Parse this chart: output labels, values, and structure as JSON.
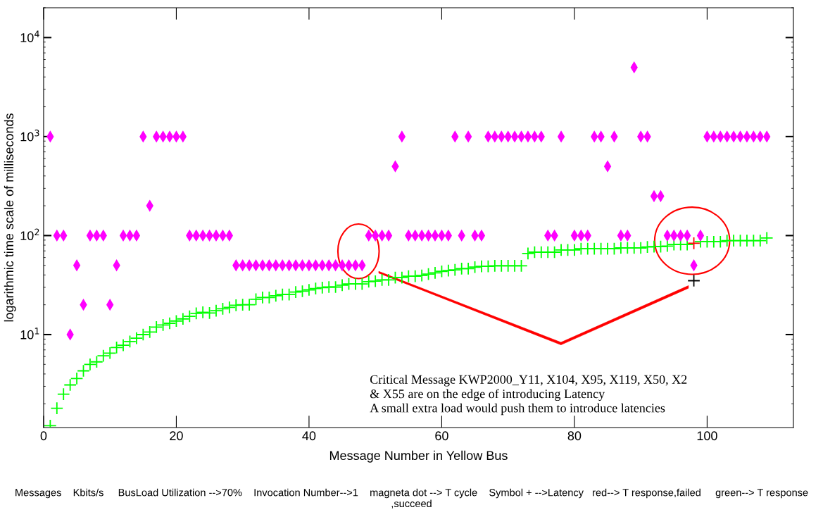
{
  "chart_data": {
    "type": "scatter",
    "xlabel": "Message Number in Yellow Bus",
    "ylabel": "logarithmic time scale of milliseconds",
    "log": "y",
    "grid": false,
    "xlim": [
      0,
      113
    ],
    "ylim": [
      1.15,
      20000
    ],
    "xticks": [
      0,
      20,
      40,
      60,
      80,
      100
    ],
    "yticks": [
      {
        "value": 10,
        "label": "10$^{1}$"
      },
      {
        "value": 100,
        "label": "10$^{2}$"
      },
      {
        "value": 1000,
        "label": "10$^{3}$"
      },
      {
        "value": 10000,
        "label": "10$^{4}$"
      }
    ],
    "series": [
      {
        "color": "#00ff00",
        "marker": "cross",
        "x": [
          1,
          2,
          3,
          4,
          5,
          6,
          7,
          8,
          9,
          10,
          11,
          12,
          13,
          14,
          15,
          16,
          17,
          18,
          19,
          20,
          21,
          22,
          23,
          24,
          25,
          26,
          27,
          28,
          29,
          30,
          31,
          32,
          33,
          34,
          35,
          36,
          37,
          38,
          39,
          40,
          41,
          42,
          43,
          44,
          45,
          46,
          47,
          48,
          49,
          50,
          51,
          52,
          53,
          54,
          55,
          56,
          57,
          58,
          59,
          60,
          61,
          62,
          63,
          64,
          65,
          66,
          67,
          68,
          69,
          70,
          71,
          72,
          73,
          74,
          75,
          76,
          77,
          78,
          79,
          80,
          81,
          82,
          83,
          84,
          85,
          86,
          87,
          88,
          89,
          90,
          91,
          92,
          93,
          94,
          95,
          96,
          97,
          99,
          100,
          101,
          102,
          103,
          104,
          105,
          106,
          107,
          108,
          109
        ],
        "values": [
          1.2,
          1.8,
          2.5,
          3.1,
          3.6,
          4.3,
          5.0,
          5.3,
          6.1,
          6.5,
          7.4,
          7.8,
          8.5,
          9.2,
          10,
          10.6,
          11.9,
          12.5,
          13,
          13.7,
          14.4,
          15.3,
          16.4,
          16.8,
          16.5,
          17.4,
          18.2,
          18.8,
          19.8,
          20,
          20,
          22.7,
          23.7,
          23.7,
          24.7,
          25.4,
          25.4,
          26.9,
          27.4,
          28.3,
          29.2,
          29.8,
          30.2,
          30.2,
          31.5,
          32.5,
          32.5,
          32.5,
          34.2,
          34.6,
          35.7,
          35.7,
          37.6,
          37.6,
          38.9,
          38.9,
          39.5,
          40.8,
          42,
          43.5,
          44.3,
          45,
          46.4,
          46.4,
          48,
          48.9,
          48.9,
          49.5,
          49.5,
          49.5,
          49.5,
          49.5,
          66,
          68,
          68,
          68,
          68,
          71.5,
          71.5,
          71.5,
          73.6,
          73.6,
          73.6,
          73.6,
          73.6,
          73.6,
          75,
          75,
          75,
          75,
          76.6,
          77.4,
          77.4,
          78.4,
          81.3,
          81.3,
          81.3,
          86.6,
          86.6,
          86.6,
          86.6,
          88.9,
          88.9,
          88.9,
          88.9,
          88.9,
          88.9,
          94.5
        ]
      },
      {
        "color": "#ff0000",
        "marker": "cross",
        "x": [
          98
        ],
        "values": [
          83.5
        ]
      },
      {
        "color": "#000000",
        "marker": "cross",
        "x": [
          98
        ],
        "values": [
          35
        ]
      },
      {
        "color": "#ff00ff",
        "marker": "diamond",
        "x": [
          1,
          2,
          3,
          4,
          5,
          6,
          7,
          8,
          9,
          10,
          11,
          12,
          13,
          14,
          15,
          16,
          17,
          18,
          19,
          20,
          21,
          22,
          23,
          24,
          25,
          26,
          27,
          28,
          29,
          30,
          31,
          32,
          33,
          34,
          35,
          36,
          37,
          38,
          39,
          40,
          41,
          42,
          43,
          44,
          45,
          46,
          47,
          48,
          49,
          50,
          51,
          52,
          53,
          54,
          55,
          56,
          57,
          58,
          59,
          60,
          61,
          62,
          63,
          64,
          65,
          66,
          67,
          68,
          69,
          70,
          71,
          72,
          73,
          74,
          75,
          76,
          77,
          78,
          80,
          81,
          82,
          83,
          84,
          85,
          86,
          87,
          88,
          89,
          90,
          91,
          92,
          93,
          94,
          95,
          96,
          97,
          98,
          99,
          100,
          101,
          102,
          103,
          104,
          105,
          106,
          107,
          108,
          109
        ],
        "values": [
          1000,
          100,
          100,
          10,
          50,
          20,
          100,
          100,
          100,
          20,
          50,
          100,
          100,
          100,
          1000,
          200,
          1000,
          1000,
          1000,
          1000,
          1000,
          100,
          100,
          100,
          100,
          100,
          100,
          100,
          50,
          50,
          50,
          50,
          50,
          50,
          50,
          50,
          50,
          50,
          50,
          50,
          50,
          50,
          50,
          50,
          50,
          50,
          50,
          50,
          100,
          100,
          100,
          100,
          500,
          1000,
          100,
          100,
          100,
          100,
          100,
          100,
          100,
          1000,
          100,
          1000,
          100,
          100,
          1000,
          1000,
          1000,
          1000,
          1000,
          1000,
          1000,
          1000,
          1000,
          100,
          100,
          1000,
          100,
          100,
          100,
          1000,
          1000,
          500,
          1000,
          100,
          100,
          5000,
          1000,
          1000,
          250,
          250,
          100,
          100,
          100,
          100,
          50,
          100,
          1000,
          1000,
          1000,
          1000,
          1000,
          1000,
          1000,
          1000,
          1000,
          1000
        ]
      }
    ],
    "annotations": [
      "Critical Message KWP2000_Y11, X104, X95, X119, X50, X2\n& X55 are on the edge of introducing Latency\nA small extra load would push them to introduce latencies",
      "Messages    Kbits/s     BusLoad Utilization -->70%    Invocation Number-->1    magneta dot --> T cycle    Symbol + -->Latency   red--> T response,failed     green--> T response ,succeed"
    ]
  }
}
